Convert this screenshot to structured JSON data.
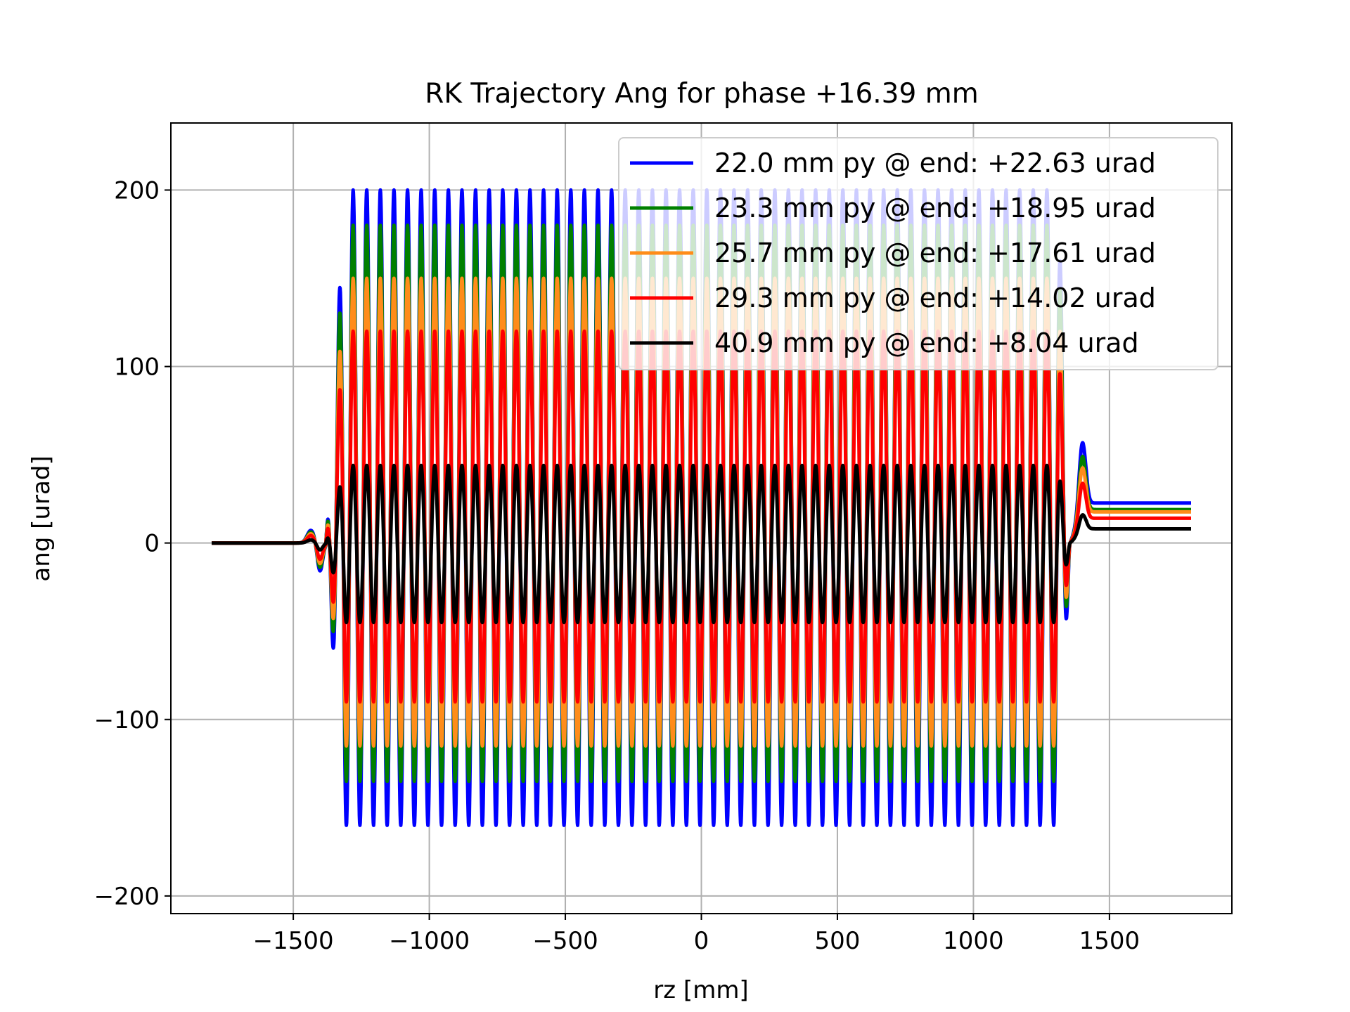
{
  "chart_data": {
    "type": "line",
    "title": "RK Trajectory Ang for phase +16.39 mm",
    "xlabel": "rz [mm]",
    "ylabel": "ang [urad]",
    "xlim": [
      -1950,
      1950
    ],
    "ylim": [
      -210,
      238
    ],
    "xticks": [
      -1500,
      -1000,
      -500,
      0,
      500,
      1000,
      1500
    ],
    "xtick_labels": [
      "−1500",
      "−1000",
      "−500",
      "0",
      "500",
      "1000",
      "1500"
    ],
    "yticks": [
      -200,
      -100,
      0,
      100,
      200
    ],
    "ytick_labels": [
      "−200",
      "−100",
      "0",
      "100",
      "200"
    ],
    "grid": true,
    "legend_position": "upper-right",
    "x_start": -1800,
    "x_end": 1800,
    "oscillation_start": -1380,
    "oscillation_end": 1355,
    "oscillation_period": 50,
    "series": [
      {
        "name": "22.0 mm py @ end: +22.63 urad",
        "color": "#0000ff",
        "peak_max": 200,
        "peak_min": -160,
        "final_value": 22.63
      },
      {
        "name": "23.3 mm py @ end: +18.95 urad",
        "color": "#008000",
        "peak_max": 180,
        "peak_min": -135,
        "final_value": 18.95
      },
      {
        "name": "25.7 mm py @ end: +17.61 urad",
        "color": "#ff8c1a",
        "peak_max": 150,
        "peak_min": -115,
        "final_value": 17.61
      },
      {
        "name": "29.3 mm py @ end: +14.02 urad",
        "color": "#ff0000",
        "peak_max": 120,
        "peak_min": -90,
        "final_value": 14.02
      },
      {
        "name": "40.9 mm py @ end: +8.04 urad",
        "color": "#000000",
        "peak_max": 44,
        "peak_min": -45,
        "final_value": 8.04
      }
    ]
  }
}
